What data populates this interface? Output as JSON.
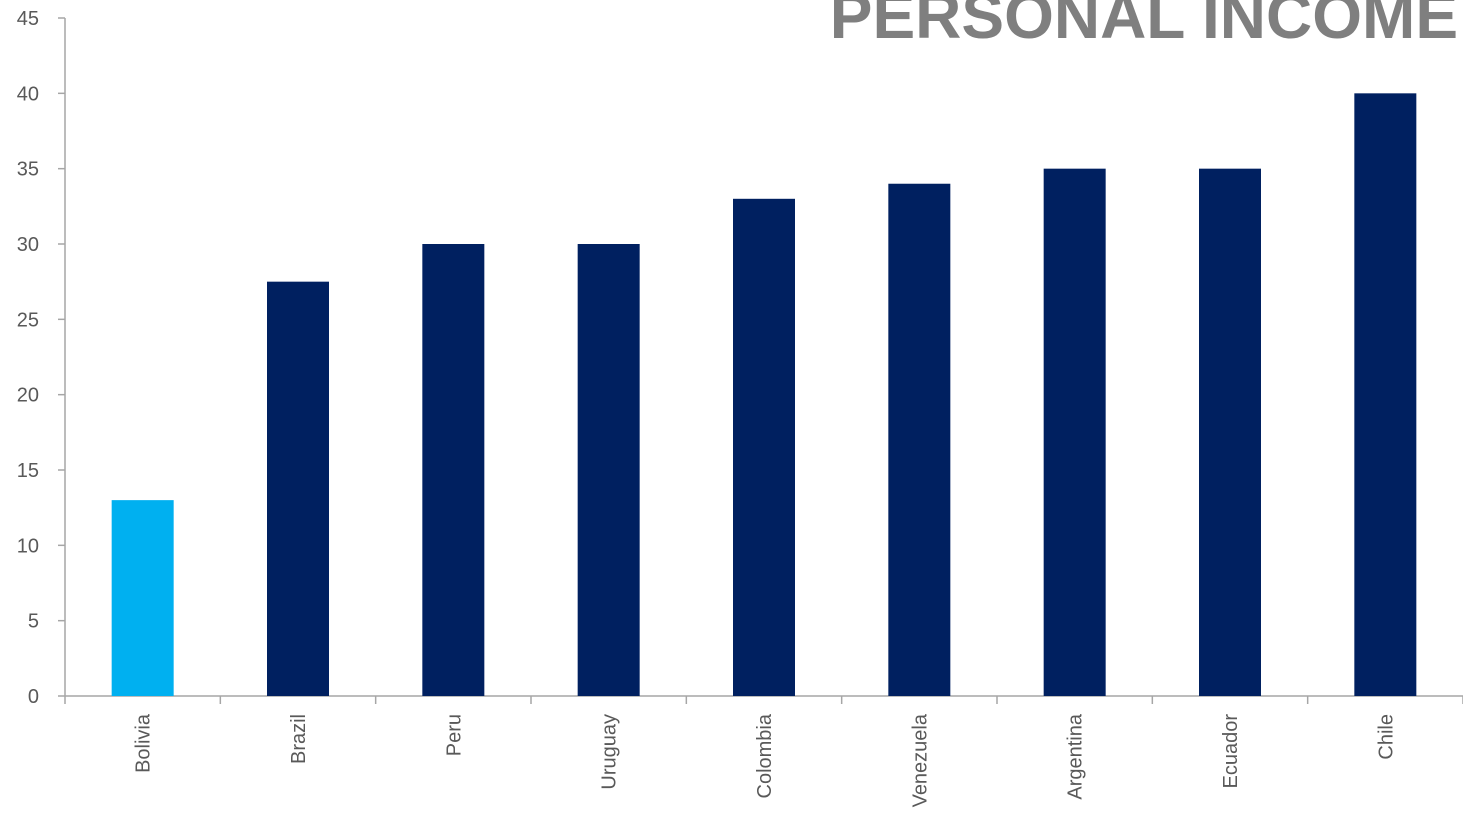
{
  "chart_data": {
    "type": "bar",
    "title": "PERSONAL INCOME",
    "categories": [
      "Bolivia",
      "Brazil",
      "Peru",
      "Uruguay",
      "Colombia",
      "Venezuela",
      "Argentina",
      "Ecuador",
      "Chile"
    ],
    "values": [
      13,
      27.5,
      30,
      30,
      33,
      34,
      35,
      35,
      40
    ],
    "bar_colors": [
      "#00b0f0",
      "#002060",
      "#002060",
      "#002060",
      "#002060",
      "#002060",
      "#002060",
      "#002060",
      "#002060"
    ],
    "ylim": [
      0,
      45
    ],
    "yticks": [
      0,
      5,
      10,
      15,
      20,
      25,
      30,
      35,
      40,
      45
    ],
    "xlabel": "",
    "ylabel": "",
    "grid": false,
    "legend": "none"
  }
}
